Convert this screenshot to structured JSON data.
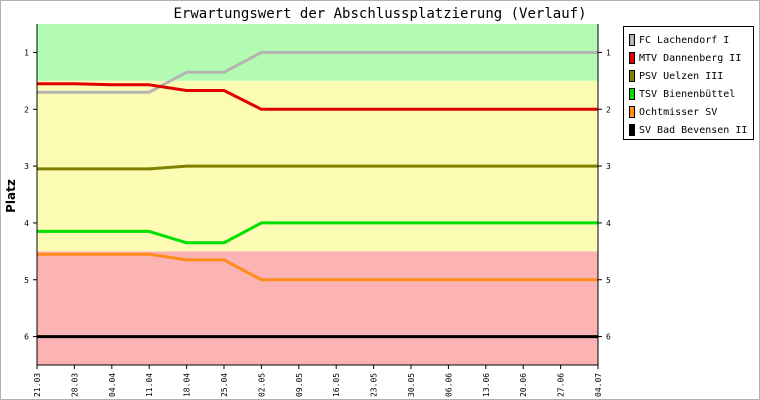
{
  "chart_data": {
    "type": "line",
    "title": "Erwartungswert der Abschlussplatzierung (Verlauf)",
    "xlabel": "",
    "ylabel": "Platz",
    "categories": [
      "21.03",
      "28.03",
      "04.04",
      "11.04",
      "18.04",
      "25.04",
      "02.05",
      "09.05",
      "16.05",
      "23.05",
      "30.05",
      "06.06",
      "13.06",
      "20.06",
      "27.06",
      "04.07"
    ],
    "yticks": [
      "1",
      "2",
      "3",
      "4",
      "5",
      "6"
    ],
    "ylim": [
      0.5,
      6.5
    ],
    "y_inverted": true,
    "bands": [
      {
        "from": 0.5,
        "to": 1.5,
        "color": "#b3fbb3"
      },
      {
        "from": 1.5,
        "to": 4.5,
        "color": "#fbfbb3"
      },
      {
        "from": 4.5,
        "to": 6.5,
        "color": "#fbb3b3"
      }
    ],
    "series": [
      {
        "name": "FC Lachendorf I",
        "color": "#b4b4b4",
        "values": [
          1.7,
          1.7,
          1.7,
          1.7,
          1.35,
          1.35,
          1.0,
          1.0,
          1.0,
          1.0,
          1.0,
          1.0,
          1.0,
          1.0,
          1.0,
          1.0
        ]
      },
      {
        "name": "MTV Dannenberg II",
        "color": "#e00000",
        "values": [
          1.55,
          1.55,
          1.57,
          1.57,
          1.67,
          1.67,
          2.0,
          2.0,
          2.0,
          2.0,
          2.0,
          2.0,
          2.0,
          2.0,
          2.0,
          2.0
        ]
      },
      {
        "name": "PSV Uelzen III",
        "color": "#808000",
        "values": [
          3.05,
          3.05,
          3.05,
          3.05,
          3.0,
          3.0,
          3.0,
          3.0,
          3.0,
          3.0,
          3.0,
          3.0,
          3.0,
          3.0,
          3.0,
          3.0
        ]
      },
      {
        "name": "TSV Bienenbüttel",
        "color": "#00e000",
        "values": [
          4.15,
          4.15,
          4.15,
          4.15,
          4.35,
          4.35,
          4.0,
          4.0,
          4.0,
          4.0,
          4.0,
          4.0,
          4.0,
          4.0,
          4.0,
          4.0
        ]
      },
      {
        "name": "Ochtmisser SV",
        "color": "#ff8c1a",
        "values": [
          4.55,
          4.55,
          4.55,
          4.55,
          4.65,
          4.65,
          5.0,
          5.0,
          5.0,
          5.0,
          5.0,
          5.0,
          5.0,
          5.0,
          5.0,
          5.0
        ]
      },
      {
        "name": "SV Bad Bevensen II",
        "color": "#000000",
        "values": [
          6.0,
          6.0,
          6.0,
          6.0,
          6.0,
          6.0,
          6.0,
          6.0,
          6.0,
          6.0,
          6.0,
          6.0,
          6.0,
          6.0,
          6.0,
          6.0
        ]
      }
    ]
  }
}
